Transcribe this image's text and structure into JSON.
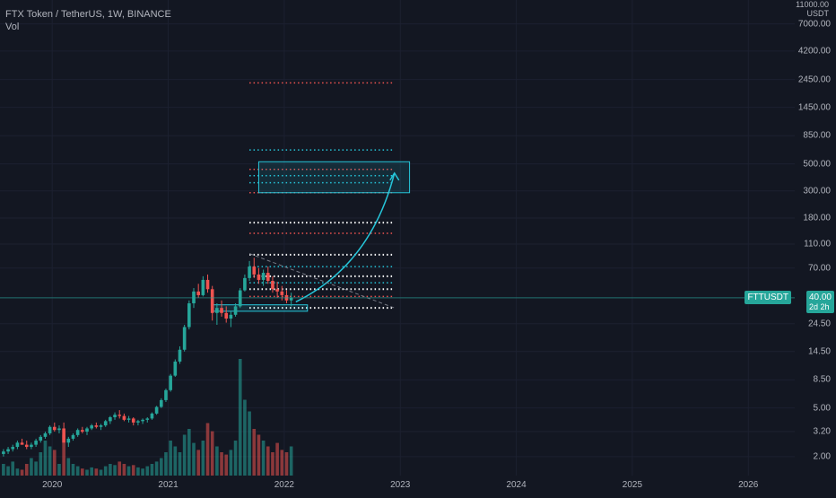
{
  "header": {
    "symbol_line": "FTX Token / TetherUS, 1W, BINANCE",
    "indicator": "Vol"
  },
  "price_axis": {
    "unit_top": "11000.00",
    "unit": "USDT",
    "ticks": [
      "7000.00",
      "4200.00",
      "2450.00",
      "1450.00",
      "850.00",
      "500.00",
      "300.00",
      "180.00",
      "110.00",
      "70.00",
      "40.00",
      "24.50",
      "14.50",
      "8.50",
      "5.00",
      "3.20",
      "2.00"
    ]
  },
  "time_axis": {
    "ticks": [
      "2020",
      "2021",
      "2022",
      "2023",
      "2024",
      "2025",
      "2026"
    ]
  },
  "current_price": {
    "symbol_badge": "FTTUSDT",
    "price": "40.00",
    "countdown": "2d 2h",
    "color": "#26a69a"
  },
  "colors": {
    "background": "#131722",
    "up": "#26a69a",
    "down": "#ef5350",
    "red_level": "#ef5350",
    "teal_level": "#26c6da",
    "white_level": "#ffffff",
    "projection": "#26c6da"
  },
  "chart_data": {
    "type": "candlestick",
    "scale": "log",
    "ylim": [
      1.6,
      11000
    ],
    "x_range": [
      2019.55,
      2026.4
    ],
    "candles": [
      [
        2019.58,
        2.1,
        2.3,
        2.0,
        2.2
      ],
      [
        2019.62,
        2.2,
        2.4,
        2.1,
        2.3
      ],
      [
        2019.66,
        2.3,
        2.5,
        2.2,
        2.4
      ],
      [
        2019.7,
        2.4,
        2.7,
        2.3,
        2.6
      ],
      [
        2019.74,
        2.6,
        2.8,
        2.5,
        2.5
      ],
      [
        2019.78,
        2.5,
        2.7,
        2.3,
        2.4
      ],
      [
        2019.82,
        2.4,
        2.6,
        2.3,
        2.5
      ],
      [
        2019.86,
        2.5,
        2.8,
        2.4,
        2.7
      ],
      [
        2019.9,
        2.7,
        3.0,
        2.6,
        2.9
      ],
      [
        2019.94,
        2.9,
        3.2,
        2.8,
        3.1
      ],
      [
        2019.98,
        3.1,
        3.6,
        3.0,
        3.5
      ],
      [
        2020.02,
        3.5,
        3.8,
        3.2,
        3.3
      ],
      [
        2020.06,
        3.3,
        3.6,
        3.1,
        3.4
      ],
      [
        2020.1,
        3.4,
        3.8,
        3.2,
        2.6
      ],
      [
        2020.14,
        2.6,
        2.9,
        2.4,
        2.8
      ],
      [
        2020.18,
        2.8,
        3.1,
        2.7,
        3.0
      ],
      [
        2020.22,
        3.0,
        3.4,
        2.9,
        3.3
      ],
      [
        2020.26,
        3.3,
        3.5,
        3.1,
        3.2
      ],
      [
        2020.3,
        3.2,
        3.5,
        3.0,
        3.4
      ],
      [
        2020.34,
        3.4,
        3.7,
        3.3,
        3.6
      ],
      [
        2020.38,
        3.6,
        3.8,
        3.4,
        3.5
      ],
      [
        2020.42,
        3.5,
        3.7,
        3.3,
        3.6
      ],
      [
        2020.46,
        3.6,
        4.0,
        3.5,
        3.9
      ],
      [
        2020.5,
        3.9,
        4.3,
        3.7,
        4.2
      ],
      [
        2020.54,
        4.2,
        4.6,
        4.0,
        4.4
      ],
      [
        2020.58,
        4.4,
        4.8,
        4.1,
        4.3
      ],
      [
        2020.62,
        4.3,
        4.5,
        3.9,
        4.0
      ],
      [
        2020.66,
        4.0,
        4.3,
        3.8,
        4.1
      ],
      [
        2020.7,
        4.1,
        4.2,
        3.6,
        3.8
      ],
      [
        2020.74,
        3.8,
        4.0,
        3.6,
        3.9
      ],
      [
        2020.78,
        3.9,
        4.1,
        3.7,
        4.0
      ],
      [
        2020.82,
        4.0,
        4.2,
        3.8,
        4.1
      ],
      [
        2020.86,
        4.1,
        4.6,
        4.0,
        4.5
      ],
      [
        2020.9,
        4.5,
        5.2,
        4.4,
        5.1
      ],
      [
        2020.94,
        5.1,
        6.0,
        5.0,
        5.8
      ],
      [
        2020.98,
        5.8,
        7.2,
        5.6,
        7.0
      ],
      [
        2021.02,
        7.0,
        9.5,
        6.8,
        9.2
      ],
      [
        2021.06,
        9.2,
        12.5,
        9.0,
        12.0
      ],
      [
        2021.1,
        12.0,
        16.0,
        11.5,
        15.0
      ],
      [
        2021.14,
        15.0,
        24.0,
        14.5,
        23.0
      ],
      [
        2021.18,
        23.0,
        38.0,
        22.0,
        36.0
      ],
      [
        2021.22,
        36.0,
        48.0,
        33.0,
        45.0
      ],
      [
        2021.26,
        45.0,
        52.0,
        40.0,
        42.0
      ],
      [
        2021.3,
        42.0,
        60.0,
        41.0,
        56.0
      ],
      [
        2021.34,
        56.0,
        62.0,
        44.0,
        47.0
      ],
      [
        2021.38,
        47.0,
        50.0,
        26.0,
        30.0
      ],
      [
        2021.42,
        30.0,
        36.0,
        24.0,
        33.0
      ],
      [
        2021.46,
        33.0,
        38.0,
        28.0,
        30.0
      ],
      [
        2021.5,
        30.0,
        34.0,
        25.0,
        27.0
      ],
      [
        2021.54,
        27.0,
        31.0,
        23.0,
        29.0
      ],
      [
        2021.58,
        29.0,
        36.0,
        28.0,
        34.0
      ],
      [
        2021.62,
        34.0,
        48.0,
        33.0,
        46.0
      ],
      [
        2021.66,
        46.0,
        62.0,
        45.0,
        58.0
      ],
      [
        2021.7,
        58.0,
        80.0,
        55.0,
        72.0
      ],
      [
        2021.74,
        72.0,
        85.0,
        58.0,
        62.0
      ],
      [
        2021.78,
        62.0,
        70.0,
        52.0,
        56.0
      ],
      [
        2021.82,
        56.0,
        68.0,
        50.0,
        64.0
      ],
      [
        2021.86,
        64.0,
        72.0,
        52.0,
        55.0
      ],
      [
        2021.9,
        55.0,
        60.0,
        44.0,
        47.0
      ],
      [
        2021.94,
        47.0,
        54.0,
        40.0,
        45.0
      ],
      [
        2021.98,
        45.0,
        50.0,
        38.0,
        42.0
      ],
      [
        2022.02,
        42.0,
        46.0,
        36.0,
        38.0
      ],
      [
        2022.06,
        38.0,
        44.0,
        34.0,
        40.0
      ]
    ],
    "volume": [
      0.1,
      0.08,
      0.12,
      0.06,
      0.05,
      0.1,
      0.15,
      0.12,
      0.2,
      0.3,
      0.25,
      0.22,
      0.1,
      0.35,
      0.15,
      0.1,
      0.08,
      0.06,
      0.05,
      0.07,
      0.06,
      0.05,
      0.08,
      0.1,
      0.09,
      0.12,
      0.1,
      0.08,
      0.09,
      0.07,
      0.06,
      0.08,
      0.1,
      0.12,
      0.15,
      0.2,
      0.3,
      0.25,
      0.2,
      0.35,
      0.4,
      0.28,
      0.22,
      0.3,
      0.45,
      0.38,
      0.25,
      0.2,
      0.18,
      0.22,
      0.3,
      1.0,
      0.65,
      0.55,
      0.4,
      0.35,
      0.3,
      0.25,
      0.2,
      0.28,
      0.22,
      0.2,
      0.25
    ],
    "levels": [
      {
        "price": 2300,
        "color": "red",
        "x": [
          2021.7,
          2022.95
        ]
      },
      {
        "price": 650,
        "color": "teal",
        "x": [
          2021.7,
          2022.95
        ]
      },
      {
        "price": 450,
        "color": "red",
        "x": [
          2021.7,
          2022.95
        ]
      },
      {
        "price": 400,
        "color": "teal",
        "x": [
          2021.7,
          2022.95
        ]
      },
      {
        "price": 350,
        "color": "teal",
        "x": [
          2021.7,
          2022.95
        ]
      },
      {
        "price": 290,
        "color": "red",
        "x": [
          2021.7,
          2022.95
        ]
      },
      {
        "price": 165,
        "color": "white",
        "x": [
          2021.7,
          2022.95
        ]
      },
      {
        "price": 135,
        "color": "red",
        "x": [
          2021.7,
          2022.95
        ]
      },
      {
        "price": 90,
        "color": "white",
        "x": [
          2021.7,
          2022.95
        ]
      },
      {
        "price": 72,
        "color": "teal",
        "x": [
          2021.7,
          2022.95
        ]
      },
      {
        "price": 60,
        "color": "white",
        "x": [
          2021.7,
          2022.95
        ]
      },
      {
        "price": 53,
        "color": "teal",
        "x": [
          2021.7,
          2022.95
        ]
      },
      {
        "price": 47,
        "color": "white",
        "x": [
          2021.7,
          2022.95
        ]
      },
      {
        "price": 41,
        "color": "red",
        "x": [
          2021.7,
          2022.95
        ]
      },
      {
        "price": 33,
        "color": "white",
        "x": [
          2021.7,
          2022.95
        ]
      }
    ],
    "boxes": [
      {
        "x": [
          2021.78,
          2023.08
        ],
        "y": [
          290,
          520
        ],
        "color": "teal"
      },
      {
        "x": [
          2021.38,
          2022.2
        ],
        "y": [
          31,
          35
        ],
        "color": "teal"
      }
    ],
    "projection_curve": [
      [
        2022.1,
        37
      ],
      [
        2022.55,
        60
      ],
      [
        2022.82,
        140
      ],
      [
        2022.95,
        420
      ]
    ],
    "trend_line": [
      [
        2021.7,
        92
      ],
      [
        2022.95,
        33
      ]
    ],
    "current_price": 40
  }
}
